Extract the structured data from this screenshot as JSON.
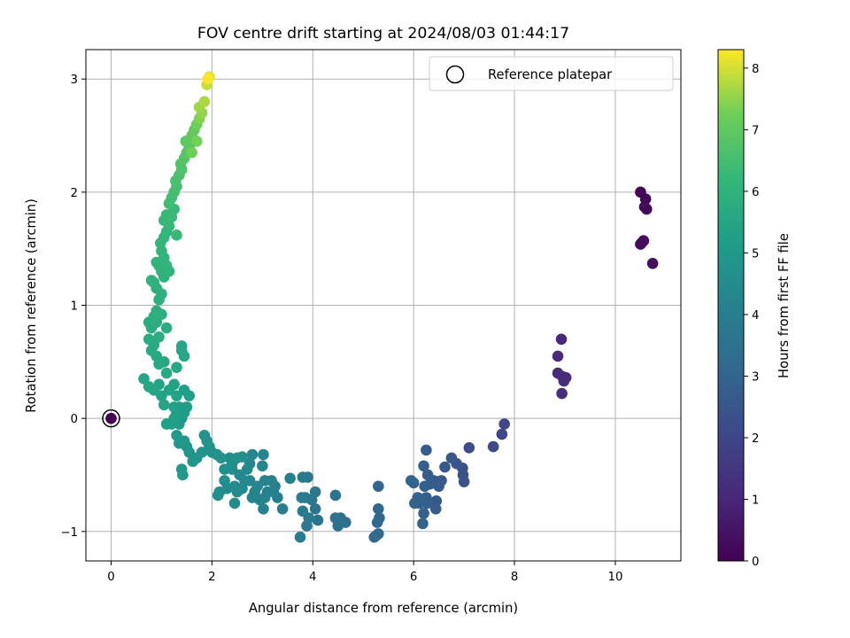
{
  "chart_data": {
    "type": "scatter",
    "title": "FOV centre drift starting at 2024/08/03 01:44:17",
    "xlabel": "Angular distance from reference (arcmin)",
    "ylabel": "Rotation from reference (arcmin)",
    "xlim": [
      -0.5,
      11.3
    ],
    "ylim": [
      -1.26,
      3.26
    ],
    "xticks": [
      "0",
      "2",
      "4",
      "6",
      "8",
      "10"
    ],
    "yticks": [
      "−1",
      "0",
      "1",
      "2",
      "3"
    ],
    "grid": true,
    "legend": {
      "label": "Reference platepar",
      "placement": "top-right"
    },
    "reference_point": {
      "x": 0,
      "y": 0,
      "hours": 0
    },
    "colorbar": {
      "label": "Hours from first FF file",
      "range": [
        0,
        8.3
      ],
      "ticks": [
        "0",
        "1",
        "2",
        "3",
        "4",
        "5",
        "6",
        "7",
        "8"
      ],
      "colormap": "viridis"
    },
    "points": [
      [
        10.5,
        2.0,
        0.1
      ],
      [
        10.6,
        1.94,
        0.12
      ],
      [
        10.58,
        1.87,
        0.15
      ],
      [
        10.62,
        1.85,
        0.18
      ],
      [
        10.52,
        1.55,
        0.22
      ],
      [
        10.56,
        1.57,
        0.25
      ],
      [
        10.5,
        1.54,
        0.28
      ],
      [
        10.74,
        1.37,
        0.32
      ],
      [
        8.93,
        0.7,
        1.05
      ],
      [
        8.86,
        0.55,
        1.1
      ],
      [
        8.86,
        0.4,
        1.15
      ],
      [
        8.95,
        0.37,
        1.18
      ],
      [
        9.02,
        0.36,
        1.2
      ],
      [
        8.98,
        0.33,
        1.22
      ],
      [
        8.94,
        0.22,
        1.25
      ],
      [
        7.8,
        -0.05,
        2.0
      ],
      [
        7.75,
        -0.14,
        2.05
      ],
      [
        7.58,
        -0.25,
        2.1
      ],
      [
        7.1,
        -0.26,
        2.2
      ],
      [
        6.97,
        -0.44,
        2.3
      ],
      [
        6.98,
        -0.5,
        2.35
      ],
      [
        7.0,
        -0.56,
        2.4
      ],
      [
        6.85,
        -0.4,
        2.45
      ],
      [
        6.75,
        -0.35,
        2.5
      ],
      [
        6.62,
        -0.43,
        2.55
      ],
      [
        6.55,
        -0.55,
        2.6
      ],
      [
        6.5,
        -0.6,
        2.62
      ],
      [
        6.45,
        -0.73,
        2.65
      ],
      [
        6.44,
        -0.8,
        2.68
      ],
      [
        6.4,
        -0.55,
        2.7
      ],
      [
        6.33,
        -0.58,
        2.72
      ],
      [
        6.28,
        -0.5,
        2.75
      ],
      [
        6.25,
        -0.28,
        2.78
      ],
      [
        6.2,
        -0.42,
        2.8
      ],
      [
        6.22,
        -0.6,
        2.82
      ],
      [
        6.25,
        -0.7,
        2.84
      ],
      [
        6.27,
        -0.75,
        2.86
      ],
      [
        6.2,
        -0.84,
        2.88
      ],
      [
        6.18,
        -0.93,
        2.9
      ],
      [
        6.12,
        -0.75,
        2.92
      ],
      [
        6.08,
        -0.7,
        2.94
      ],
      [
        6.02,
        -0.75,
        2.96
      ],
      [
        6.0,
        -0.57,
        2.98
      ],
      [
        5.95,
        -0.55,
        3.0
      ],
      [
        5.3,
        -0.6,
        3.05
      ],
      [
        5.3,
        -0.8,
        3.1
      ],
      [
        5.32,
        -0.88,
        3.12
      ],
      [
        5.28,
        -0.92,
        3.15
      ],
      [
        5.3,
        -1.02,
        3.18
      ],
      [
        5.25,
        -1.04,
        3.2
      ],
      [
        5.22,
        -1.05,
        3.22
      ],
      [
        4.65,
        -0.92,
        3.4
      ],
      [
        4.55,
        -0.88,
        3.45
      ],
      [
        4.5,
        -0.95,
        3.48
      ],
      [
        4.45,
        -0.88,
        3.5
      ],
      [
        4.45,
        -0.68,
        3.52
      ],
      [
        4.1,
        -0.9,
        3.6
      ],
      [
        4.05,
        -0.8,
        3.65
      ],
      [
        4.05,
        -0.65,
        3.7
      ],
      [
        3.98,
        -0.72,
        3.72
      ],
      [
        3.9,
        -0.52,
        3.74
      ],
      [
        3.85,
        -0.7,
        3.76
      ],
      [
        3.92,
        -0.88,
        3.78
      ],
      [
        3.88,
        -0.95,
        3.8
      ],
      [
        3.8,
        -0.82,
        3.82
      ],
      [
        3.8,
        -0.52,
        3.84
      ],
      [
        3.75,
        -1.05,
        3.86
      ],
      [
        3.78,
        -0.7,
        3.88
      ],
      [
        3.55,
        -0.53,
        3.95
      ],
      [
        3.4,
        -0.8,
        4.0
      ],
      [
        3.3,
        -0.7,
        4.02
      ],
      [
        3.25,
        -0.6,
        4.05
      ],
      [
        3.22,
        -0.65,
        4.08
      ],
      [
        3.18,
        -0.55,
        4.1
      ],
      [
        3.1,
        -0.65,
        4.12
      ],
      [
        3.05,
        -0.7,
        4.14
      ],
      [
        3.02,
        -0.8,
        4.16
      ],
      [
        3.05,
        -0.55,
        4.18
      ],
      [
        2.95,
        -0.72,
        4.2
      ],
      [
        2.9,
        -0.6,
        4.22
      ],
      [
        2.85,
        -0.65,
        4.24
      ],
      [
        2.8,
        -0.7,
        4.26
      ],
      [
        2.75,
        -0.55,
        4.28
      ],
      [
        3.0,
        -0.42,
        4.3
      ],
      [
        3.02,
        -0.32,
        4.32
      ],
      [
        2.8,
        -0.32,
        4.34
      ],
      [
        2.75,
        -0.4,
        4.36
      ],
      [
        2.7,
        -0.45,
        4.38
      ],
      [
        2.65,
        -0.55,
        4.4
      ],
      [
        2.6,
        -0.62,
        4.42
      ],
      [
        2.55,
        -0.5,
        4.44
      ],
      [
        2.5,
        -0.65,
        4.46
      ],
      [
        2.45,
        -0.75,
        4.48
      ],
      [
        2.45,
        -0.6,
        4.5
      ],
      [
        2.4,
        -0.45,
        4.52
      ],
      [
        2.35,
        -0.35,
        4.54
      ],
      [
        2.3,
        -0.62,
        4.56
      ],
      [
        2.25,
        -0.55,
        4.58
      ],
      [
        2.15,
        -0.65,
        4.6
      ],
      [
        2.12,
        -0.68,
        4.62
      ],
      [
        2.6,
        -0.34,
        4.64
      ],
      [
        2.5,
        -0.35,
        4.66
      ],
      [
        2.4,
        -0.4,
        4.68
      ],
      [
        2.25,
        -0.45,
        4.7
      ],
      [
        2.18,
        -0.35,
        4.72
      ],
      [
        2.1,
        -0.32,
        4.74
      ],
      [
        2.0,
        -0.3,
        4.76
      ],
      [
        1.95,
        -0.25,
        4.78
      ],
      [
        1.9,
        -0.2,
        4.8
      ],
      [
        1.85,
        -0.15,
        4.82
      ],
      [
        1.8,
        -0.3,
        4.84
      ],
      [
        1.7,
        -0.35,
        4.86
      ],
      [
        1.62,
        -0.38,
        4.88
      ],
      [
        1.55,
        -0.3,
        4.9
      ],
      [
        1.5,
        -0.25,
        4.92
      ],
      [
        1.45,
        -0.2,
        4.94
      ],
      [
        1.4,
        -0.45,
        4.96
      ],
      [
        1.42,
        -0.5,
        4.98
      ],
      [
        1.35,
        -0.22,
        5.0
      ],
      [
        1.3,
        -0.15,
        5.05
      ],
      [
        1.35,
        -0.05,
        5.1
      ],
      [
        1.4,
        0.0,
        5.12
      ],
      [
        1.45,
        0.05,
        5.14
      ],
      [
        1.5,
        0.1,
        5.16
      ],
      [
        1.55,
        0.2,
        5.18
      ],
      [
        1.45,
        0.25,
        5.2
      ],
      [
        1.35,
        0.1,
        5.22
      ],
      [
        1.3,
        0.05,
        5.24
      ],
      [
        1.25,
        0.0,
        5.26
      ],
      [
        1.2,
        -0.05,
        5.28
      ],
      [
        1.1,
        -0.05,
        5.3
      ],
      [
        1.25,
        0.1,
        5.32
      ],
      [
        1.3,
        0.2,
        5.34
      ],
      [
        1.25,
        0.3,
        5.36
      ],
      [
        1.15,
        0.25,
        5.38
      ],
      [
        1.05,
        0.12,
        5.4
      ],
      [
        1.0,
        0.2,
        5.42
      ],
      [
        0.95,
        0.3,
        5.44
      ],
      [
        0.85,
        0.25,
        5.46
      ],
      [
        0.75,
        0.28,
        5.48
      ],
      [
        0.65,
        0.35,
        5.5
      ],
      [
        1.4,
        0.6,
        5.52
      ],
      [
        1.4,
        0.64,
        5.54
      ],
      [
        1.45,
        0.55,
        5.56
      ],
      [
        1.3,
        0.45,
        5.58
      ],
      [
        1.1,
        0.4,
        5.6
      ],
      [
        1.05,
        0.5,
        5.62
      ],
      [
        0.95,
        0.48,
        5.64
      ],
      [
        0.9,
        0.55,
        5.66
      ],
      [
        0.85,
        0.65,
        5.68
      ],
      [
        0.8,
        0.6,
        5.7
      ],
      [
        0.75,
        0.7,
        5.72
      ],
      [
        0.8,
        0.8,
        5.74
      ],
      [
        0.75,
        0.85,
        5.76
      ],
      [
        1.1,
        0.8,
        5.78
      ],
      [
        0.95,
        0.72,
        5.8
      ],
      [
        0.9,
        0.85,
        5.82
      ],
      [
        0.85,
        0.9,
        5.84
      ],
      [
        0.9,
        0.95,
        5.86
      ],
      [
        1.0,
        0.92,
        5.88
      ],
      [
        0.95,
        1.05,
        5.9
      ],
      [
        1.0,
        1.1,
        5.92
      ],
      [
        0.9,
        1.15,
        5.94
      ],
      [
        0.85,
        1.2,
        5.96
      ],
      [
        0.8,
        1.22,
        5.98
      ],
      [
        1.05,
        1.25,
        6.0
      ],
      [
        1.0,
        1.3,
        6.02
      ],
      [
        0.95,
        1.35,
        6.04
      ],
      [
        0.9,
        1.38,
        6.06
      ],
      [
        1.15,
        1.3,
        6.08
      ],
      [
        1.1,
        1.35,
        6.1
      ],
      [
        1.05,
        1.42,
        6.12
      ],
      [
        1.0,
        1.48,
        6.14
      ],
      [
        0.98,
        1.55,
        6.16
      ],
      [
        1.05,
        1.6,
        6.18
      ],
      [
        1.1,
        1.65,
        6.2
      ],
      [
        1.15,
        1.7,
        6.22
      ],
      [
        1.05,
        1.75,
        6.24
      ],
      [
        1.1,
        1.8,
        6.26
      ],
      [
        1.3,
        1.62,
        6.28
      ],
      [
        1.2,
        1.78,
        6.3
      ],
      [
        1.25,
        1.85,
        6.32
      ],
      [
        1.15,
        1.9,
        6.4
      ],
      [
        1.2,
        1.95,
        6.45
      ],
      [
        1.25,
        2.0,
        6.5
      ],
      [
        1.3,
        2.05,
        6.55
      ],
      [
        1.28,
        2.1,
        6.6
      ],
      [
        1.35,
        2.15,
        6.65
      ],
      [
        1.4,
        2.2,
        6.7
      ],
      [
        1.38,
        2.25,
        6.75
      ],
      [
        1.45,
        2.3,
        6.8
      ],
      [
        1.5,
        2.35,
        6.85
      ],
      [
        1.55,
        2.4,
        6.9
      ],
      [
        1.48,
        2.45,
        6.95
      ],
      [
        1.6,
        2.5,
        7.0
      ],
      [
        1.65,
        2.55,
        7.1
      ],
      [
        1.7,
        2.6,
        7.2
      ],
      [
        1.6,
        2.35,
        7.25
      ],
      [
        1.7,
        2.45,
        7.3
      ],
      [
        1.75,
        2.65,
        7.4
      ],
      [
        1.8,
        2.7,
        7.5
      ],
      [
        1.75,
        2.75,
        7.6
      ],
      [
        1.85,
        2.8,
        7.7
      ],
      [
        1.9,
        2.95,
        7.9
      ],
      [
        1.95,
        3.02,
        8.1
      ],
      [
        1.92,
        3.0,
        8.25
      ]
    ]
  }
}
